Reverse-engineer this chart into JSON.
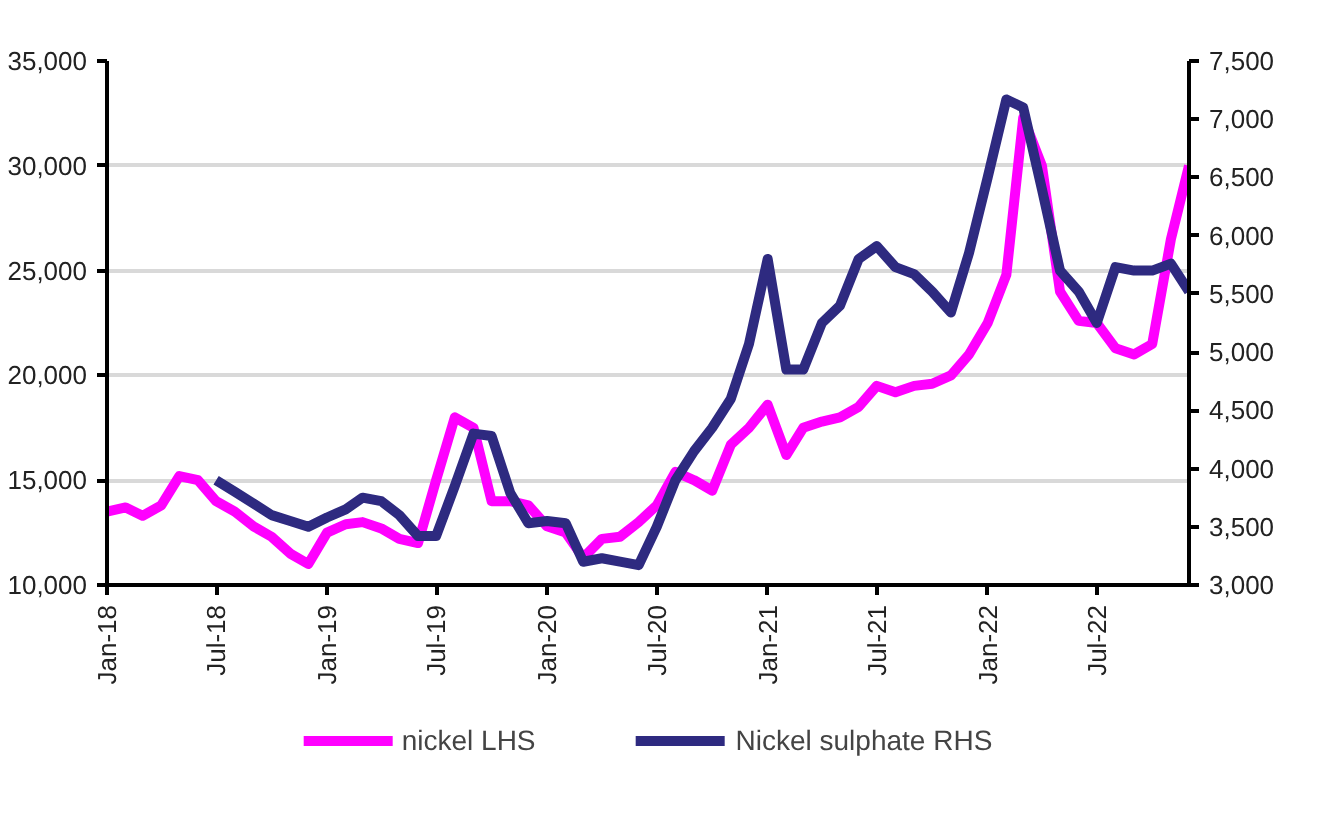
{
  "chart_data": {
    "type": "line",
    "x": [
      "2018-01",
      "2018-02",
      "2018-03",
      "2018-04",
      "2018-05",
      "2018-06",
      "2018-07",
      "2018-08",
      "2018-09",
      "2018-10",
      "2018-11",
      "2018-12",
      "2019-01",
      "2019-02",
      "2019-03",
      "2019-04",
      "2019-05",
      "2019-06",
      "2019-07",
      "2019-08",
      "2019-09",
      "2019-10",
      "2019-11",
      "2019-12",
      "2020-01",
      "2020-02",
      "2020-03",
      "2020-04",
      "2020-05",
      "2020-06",
      "2020-07",
      "2020-08",
      "2020-09",
      "2020-10",
      "2020-11",
      "2020-12",
      "2021-01",
      "2021-02",
      "2021-03",
      "2021-04",
      "2021-05",
      "2021-06",
      "2021-07",
      "2021-08",
      "2021-09",
      "2021-10",
      "2021-11",
      "2021-12",
      "2022-01",
      "2022-02",
      "2022-03",
      "2022-04",
      "2022-05",
      "2022-06",
      "2022-07",
      "2022-08",
      "2022-09",
      "2022-10",
      "2022-11",
      "2022-12"
    ],
    "series": [
      {
        "name": "nickel LHS",
        "color": "#ff00ff",
        "values": [
          13500,
          13700,
          13300,
          13800,
          15200,
          15000,
          14000,
          13500,
          12800,
          12300,
          11500,
          11000,
          12500,
          12900,
          13000,
          12700,
          12200,
          12000,
          15000,
          18000,
          17500,
          14000,
          14000,
          13800,
          12800,
          12500,
          11300,
          12200,
          12300,
          13000,
          13800,
          15400,
          15000,
          14500,
          16700,
          17500,
          18600,
          16200,
          17500,
          17800,
          18000,
          18500,
          19500,
          19200,
          19500,
          19600,
          20000,
          21000,
          22500,
          24800,
          32300,
          30000,
          24000,
          22600,
          22500,
          21300,
          21000,
          21500,
          26500,
          30000
        ]
      },
      {
        "name": "Nickel sulphate RHS",
        "color": "#2e2a80",
        "axis": "y2",
        "values": [
          null,
          null,
          null,
          null,
          null,
          null,
          3900,
          3800,
          3700,
          3600,
          3550,
          3500,
          3580,
          3650,
          3750,
          3720,
          3600,
          3420,
          3420,
          3850,
          4300,
          4280,
          3790,
          3530,
          3550,
          3530,
          3200,
          3230,
          3200,
          3170,
          3500,
          3900,
          4150,
          4350,
          4600,
          5070,
          5800,
          4850,
          4850,
          5250,
          5400,
          5800,
          5910,
          5730,
          5670,
          5520,
          5340,
          5850,
          6500,
          7170,
          7100,
          6400,
          5700,
          5520,
          5250,
          5730,
          5700,
          5700,
          5760,
          5520
        ]
      }
    ],
    "xlim": [
      "2018-01",
      "2022-12"
    ],
    "xticks": [
      {
        "value": "2018-01",
        "label": "Jan-18"
      },
      {
        "value": "2018-07",
        "label": "Jul-18"
      },
      {
        "value": "2019-01",
        "label": "Jan-19"
      },
      {
        "value": "2019-07",
        "label": "Jul-19"
      },
      {
        "value": "2020-01",
        "label": "Jan-20"
      },
      {
        "value": "2020-07",
        "label": "Jul-20"
      },
      {
        "value": "2021-01",
        "label": "Jan-21"
      },
      {
        "value": "2021-07",
        "label": "Jul-21"
      },
      {
        "value": "2022-01",
        "label": "Jan-22"
      },
      {
        "value": "2022-07",
        "label": "Jul-22"
      }
    ],
    "ylim": [
      10000,
      35000
    ],
    "yticks": [
      {
        "value": 10000,
        "label": "10,000"
      },
      {
        "value": 15000,
        "label": "15,000"
      },
      {
        "value": 20000,
        "label": "20,000"
      },
      {
        "value": 25000,
        "label": "25,000"
      },
      {
        "value": 30000,
        "label": "30,000"
      },
      {
        "value": 35000,
        "label": "35,000"
      }
    ],
    "y2lim": [
      3000,
      7500
    ],
    "y2ticks": [
      {
        "value": 3000,
        "label": "3,000"
      },
      {
        "value": 3500,
        "label": "3,500"
      },
      {
        "value": 4000,
        "label": "4,000"
      },
      {
        "value": 4500,
        "label": "4,500"
      },
      {
        "value": 5000,
        "label": "5,000"
      },
      {
        "value": 5500,
        "label": "5,500"
      },
      {
        "value": 6000,
        "label": "6,000"
      },
      {
        "value": 6500,
        "label": "6,500"
      },
      {
        "value": 7000,
        "label": "7,000"
      },
      {
        "value": 7500,
        "label": "7,500"
      }
    ],
    "grid": "y",
    "legend": "bottom",
    "line_style": "solid",
    "marker": "none"
  }
}
